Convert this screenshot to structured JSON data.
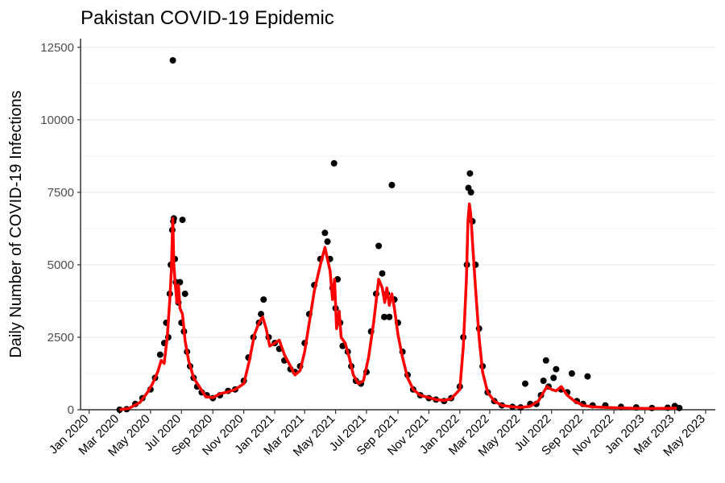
{
  "chart_data": {
    "type": "scatter",
    "title": "Pakistan COVID-19 Epidemic",
    "xlabel": "",
    "ylabel": "Daily Number of COVID-19 Infections",
    "x_axis_type": "date",
    "xlim": [
      "2019-12-15",
      "2023-05-20"
    ],
    "ylim": [
      0,
      12800
    ],
    "x_tick_labels": [
      "Jan 2020",
      "Mar 2020",
      "May 2020",
      "Jul 2020",
      "Sep 2020",
      "Nov 2020",
      "Jan 2021",
      "Mar 2021",
      "May 2021",
      "Jul 2021",
      "Sep 2021",
      "Nov 2021",
      "Jan 2022",
      "Mar 2022",
      "May 2022",
      "Jul 2022",
      "Sep 2022",
      "Nov 2022",
      "Jan 2023",
      "Mar 2023",
      "May 2023"
    ],
    "x_tick_dates": [
      "2020-01-01",
      "2020-03-01",
      "2020-05-01",
      "2020-07-01",
      "2020-09-01",
      "2020-11-01",
      "2021-01-01",
      "2021-03-01",
      "2021-05-01",
      "2021-07-01",
      "2021-09-01",
      "2021-11-01",
      "2022-01-01",
      "2022-03-01",
      "2022-05-01",
      "2022-07-01",
      "2022-09-01",
      "2022-11-01",
      "2023-01-01",
      "2023-03-01",
      "2023-05-01"
    ],
    "y_ticks": [
      0,
      2500,
      5000,
      7500,
      10000,
      12500
    ],
    "y_tick_labels": [
      "0",
      "2500",
      "5000",
      "7500",
      "10000",
      "12500"
    ],
    "grid": "horizontal",
    "legend": "none",
    "series": [
      {
        "style": "points",
        "color": "#000000",
        "points": [
          [
            "2020-03-01",
            0
          ],
          [
            "2020-03-15",
            20
          ],
          [
            "2020-04-01",
            200
          ],
          [
            "2020-04-15",
            400
          ],
          [
            "2020-05-01",
            700
          ],
          [
            "2020-05-10",
            1100
          ],
          [
            "2020-05-20",
            1900
          ],
          [
            "2020-05-28",
            2300
          ],
          [
            "2020-06-01",
            3000
          ],
          [
            "2020-06-05",
            2500
          ],
          [
            "2020-06-08",
            4000
          ],
          [
            "2020-06-10",
            5000
          ],
          [
            "2020-06-13",
            6200
          ],
          [
            "2020-06-15",
            6500
          ],
          [
            "2020-06-14",
            12050
          ],
          [
            "2020-06-16",
            6600
          ],
          [
            "2020-06-18",
            5200
          ],
          [
            "2020-06-20",
            4400
          ],
          [
            "2020-06-25",
            3700
          ],
          [
            "2020-06-28",
            4400
          ],
          [
            "2020-07-01",
            3000
          ],
          [
            "2020-07-03",
            6550
          ],
          [
            "2020-07-06",
            2700
          ],
          [
            "2020-07-08",
            4000
          ],
          [
            "2020-07-12",
            2000
          ],
          [
            "2020-07-18",
            1500
          ],
          [
            "2020-07-25",
            1100
          ],
          [
            "2020-08-01",
            800
          ],
          [
            "2020-08-10",
            600
          ],
          [
            "2020-08-20",
            500
          ],
          [
            "2020-09-01",
            400
          ],
          [
            "2020-09-15",
            500
          ],
          [
            "2020-10-01",
            650
          ],
          [
            "2020-10-15",
            700
          ],
          [
            "2020-11-01",
            1000
          ],
          [
            "2020-11-10",
            1800
          ],
          [
            "2020-11-20",
            2500
          ],
          [
            "2020-12-01",
            3000
          ],
          [
            "2020-12-05",
            3300
          ],
          [
            "2020-12-10",
            3800
          ],
          [
            "2020-12-20",
            2500
          ],
          [
            "2021-01-01",
            2300
          ],
          [
            "2021-01-10",
            2100
          ],
          [
            "2021-01-20",
            1700
          ],
          [
            "2021-02-01",
            1400
          ],
          [
            "2021-02-10",
            1300
          ],
          [
            "2021-02-20",
            1500
          ],
          [
            "2021-03-01",
            2300
          ],
          [
            "2021-03-10",
            3300
          ],
          [
            "2021-03-20",
            4300
          ],
          [
            "2021-04-01",
            5200
          ],
          [
            "2021-04-10",
            6100
          ],
          [
            "2021-04-15",
            5800
          ],
          [
            "2021-04-20",
            5200
          ],
          [
            "2021-04-25",
            4200
          ],
          [
            "2021-04-28",
            8500
          ],
          [
            "2021-05-01",
            3500
          ],
          [
            "2021-05-05",
            4500
          ],
          [
            "2021-05-10",
            3000
          ],
          [
            "2021-05-15",
            2200
          ],
          [
            "2021-05-25",
            2000
          ],
          [
            "2021-06-01",
            1500
          ],
          [
            "2021-06-10",
            1000
          ],
          [
            "2021-06-20",
            900
          ],
          [
            "2021-07-01",
            1300
          ],
          [
            "2021-07-10",
            2700
          ],
          [
            "2021-07-20",
            4000
          ],
          [
            "2021-07-25",
            5650
          ],
          [
            "2021-08-01",
            4700
          ],
          [
            "2021-08-05",
            3200
          ],
          [
            "2021-08-10",
            4000
          ],
          [
            "2021-08-15",
            3200
          ],
          [
            "2021-08-20",
            7750
          ],
          [
            "2021-08-25",
            3800
          ],
          [
            "2021-09-01",
            3000
          ],
          [
            "2021-09-10",
            2000
          ],
          [
            "2021-09-20",
            1200
          ],
          [
            "2021-10-01",
            700
          ],
          [
            "2021-10-15",
            500
          ],
          [
            "2021-11-01",
            400
          ],
          [
            "2021-11-15",
            350
          ],
          [
            "2021-12-01",
            300
          ],
          [
            "2021-12-15",
            400
          ],
          [
            "2022-01-01",
            800
          ],
          [
            "2022-01-08",
            2500
          ],
          [
            "2022-01-15",
            5000
          ],
          [
            "2022-01-18",
            7650
          ],
          [
            "2022-01-21",
            8150
          ],
          [
            "2022-01-23",
            7500
          ],
          [
            "2022-01-26",
            6500
          ],
          [
            "2022-02-01",
            5000
          ],
          [
            "2022-02-08",
            2800
          ],
          [
            "2022-02-15",
            1500
          ],
          [
            "2022-02-25",
            600
          ],
          [
            "2022-03-10",
            300
          ],
          [
            "2022-03-25",
            150
          ],
          [
            "2022-04-15",
            100
          ],
          [
            "2022-05-01",
            80
          ],
          [
            "2022-05-10",
            900
          ],
          [
            "2022-05-20",
            200
          ],
          [
            "2022-06-01",
            200
          ],
          [
            "2022-06-10",
            500
          ],
          [
            "2022-06-15",
            1000
          ],
          [
            "2022-06-20",
            1700
          ],
          [
            "2022-06-25",
            800
          ],
          [
            "2022-07-05",
            1100
          ],
          [
            "2022-07-10",
            1400
          ],
          [
            "2022-07-20",
            700
          ],
          [
            "2022-08-01",
            600
          ],
          [
            "2022-08-10",
            1250
          ],
          [
            "2022-08-20",
            300
          ],
          [
            "2022-09-01",
            200
          ],
          [
            "2022-09-10",
            1150
          ],
          [
            "2022-09-20",
            150
          ],
          [
            "2022-10-15",
            150
          ],
          [
            "2022-11-15",
            100
          ],
          [
            "2022-12-15",
            80
          ],
          [
            "2023-01-15",
            60
          ],
          [
            "2023-02-15",
            70
          ],
          [
            "2023-03-01",
            130
          ],
          [
            "2023-03-10",
            60
          ]
        ]
      },
      {
        "style": "line",
        "color": "#ff0000",
        "points": [
          [
            "2020-03-01",
            0
          ],
          [
            "2020-03-20",
            50
          ],
          [
            "2020-04-10",
            250
          ],
          [
            "2020-04-25",
            600
          ],
          [
            "2020-05-05",
            900
          ],
          [
            "2020-05-15",
            1300
          ],
          [
            "2020-05-22",
            1700
          ],
          [
            "2020-05-28",
            1600
          ],
          [
            "2020-06-03",
            2500
          ],
          [
            "2020-06-08",
            3800
          ],
          [
            "2020-06-11",
            4800
          ],
          [
            "2020-06-14",
            6600
          ],
          [
            "2020-06-16",
            5000
          ],
          [
            "2020-06-18",
            4500
          ],
          [
            "2020-06-22",
            3700
          ],
          [
            "2020-06-25",
            4300
          ],
          [
            "2020-06-28",
            3500
          ],
          [
            "2020-07-03",
            3300
          ],
          [
            "2020-07-08",
            2400
          ],
          [
            "2020-07-15",
            1700
          ],
          [
            "2020-07-25",
            1100
          ],
          [
            "2020-08-05",
            800
          ],
          [
            "2020-08-18",
            450
          ],
          [
            "2020-09-01",
            420
          ],
          [
            "2020-09-15",
            550
          ],
          [
            "2020-10-01",
            620
          ],
          [
            "2020-10-15",
            700
          ],
          [
            "2020-11-01",
            900
          ],
          [
            "2020-11-12",
            1700
          ],
          [
            "2020-11-22",
            2600
          ],
          [
            "2020-12-01",
            3000
          ],
          [
            "2020-12-08",
            3200
          ],
          [
            "2020-12-15",
            2800
          ],
          [
            "2020-12-22",
            2200
          ],
          [
            "2021-01-01",
            2300
          ],
          [
            "2021-01-10",
            2400
          ],
          [
            "2021-01-20",
            1900
          ],
          [
            "2021-02-01",
            1500
          ],
          [
            "2021-02-10",
            1200
          ],
          [
            "2021-02-20",
            1350
          ],
          [
            "2021-03-01",
            2000
          ],
          [
            "2021-03-10",
            3000
          ],
          [
            "2021-03-20",
            4100
          ],
          [
            "2021-04-01",
            5000
          ],
          [
            "2021-04-10",
            5600
          ],
          [
            "2021-04-15",
            5200
          ],
          [
            "2021-04-20",
            4800
          ],
          [
            "2021-04-25",
            3800
          ],
          [
            "2021-04-29",
            4500
          ],
          [
            "2021-05-03",
            2800
          ],
          [
            "2021-05-08",
            3400
          ],
          [
            "2021-05-12",
            2500
          ],
          [
            "2021-05-20",
            2300
          ],
          [
            "2021-05-28",
            1800
          ],
          [
            "2021-06-05",
            1200
          ],
          [
            "2021-06-15",
            900
          ],
          [
            "2021-06-25",
            1000
          ],
          [
            "2021-07-05",
            1800
          ],
          [
            "2021-07-15",
            3000
          ],
          [
            "2021-07-25",
            4500
          ],
          [
            "2021-08-01",
            4200
          ],
          [
            "2021-08-06",
            3700
          ],
          [
            "2021-08-10",
            4200
          ],
          [
            "2021-08-15",
            3600
          ],
          [
            "2021-08-20",
            4000
          ],
          [
            "2021-08-25",
            3500
          ],
          [
            "2021-09-01",
            2600
          ],
          [
            "2021-09-10",
            1800
          ],
          [
            "2021-09-20",
            1100
          ],
          [
            "2021-10-01",
            700
          ],
          [
            "2021-10-15",
            500
          ],
          [
            "2021-11-01",
            420
          ],
          [
            "2021-11-15",
            350
          ],
          [
            "2021-12-01",
            320
          ],
          [
            "2021-12-15",
            380
          ],
          [
            "2022-01-01",
            700
          ],
          [
            "2022-01-08",
            2200
          ],
          [
            "2022-01-14",
            4500
          ],
          [
            "2022-01-17",
            6500
          ],
          [
            "2022-01-20",
            7100
          ],
          [
            "2022-01-23",
            6700
          ],
          [
            "2022-01-26",
            5800
          ],
          [
            "2022-02-01",
            4200
          ],
          [
            "2022-02-08",
            2500
          ],
          [
            "2022-02-15",
            1300
          ],
          [
            "2022-02-25",
            600
          ],
          [
            "2022-03-10",
            300
          ],
          [
            "2022-03-25",
            150
          ],
          [
            "2022-04-15",
            100
          ],
          [
            "2022-05-01",
            80
          ],
          [
            "2022-05-20",
            120
          ],
          [
            "2022-06-05",
            300
          ],
          [
            "2022-06-15",
            600
          ],
          [
            "2022-06-22",
            800
          ],
          [
            "2022-07-01",
            700
          ],
          [
            "2022-07-10",
            650
          ],
          [
            "2022-07-20",
            800
          ],
          [
            "2022-08-01",
            500
          ],
          [
            "2022-08-15",
            300
          ],
          [
            "2022-09-01",
            150
          ],
          [
            "2022-09-20",
            100
          ],
          [
            "2022-10-15",
            80
          ],
          [
            "2022-11-15",
            60
          ],
          [
            "2022-12-15",
            50
          ],
          [
            "2023-01-15",
            45
          ],
          [
            "2023-02-15",
            50
          ],
          [
            "2023-03-05",
            55
          ]
        ]
      }
    ]
  }
}
